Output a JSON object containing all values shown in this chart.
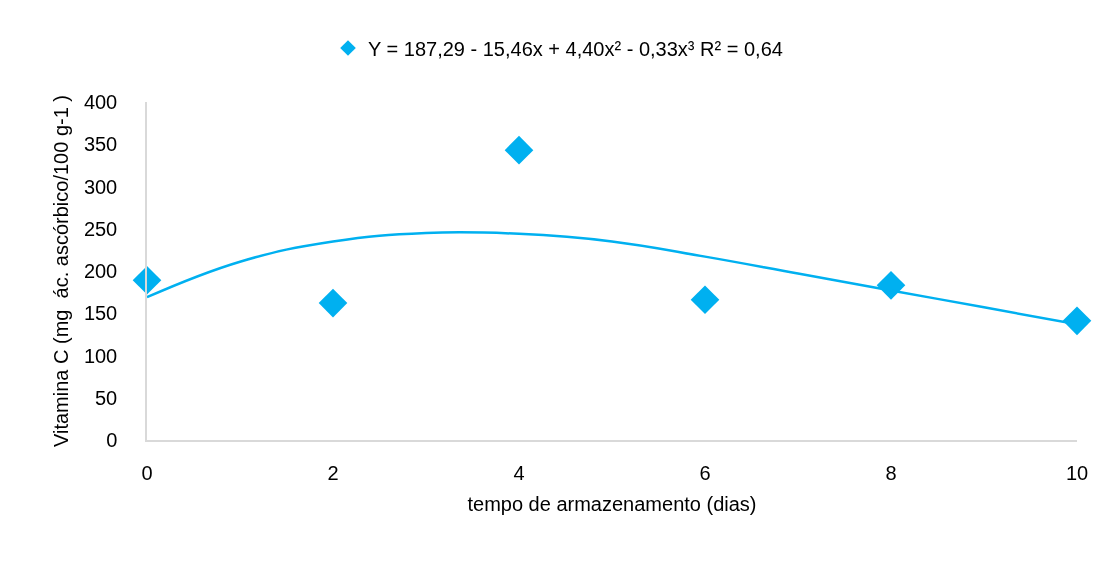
{
  "chart_data": {
    "type": "scatter",
    "xlabel": "tempo de armazenamento (dias)",
    "ylabel": "Vitamina C (mg  ác. ascórbico/100 g-1 )",
    "x": [
      0,
      2,
      4,
      6,
      8,
      10
    ],
    "series": [
      {
        "name": "Y = 187,29 - 15,46x + 4,40x² - 0,33x³ R² = 0,64",
        "color": "#00b0f0",
        "values": [
          189,
          162,
          343,
          166,
          183,
          141
        ],
        "marker": "diamond"
      },
      {
        "type": "line",
        "color": "#00b0f0",
        "x": [
          0,
          1,
          2,
          3,
          4,
          5,
          6,
          7,
          8,
          9,
          10
        ],
        "values": [
          169,
          211,
          235,
          245,
          244,
          235,
          217,
          197,
          177,
          157,
          137
        ],
        "marker": "none",
        "line_style": "solid"
      }
    ],
    "xlim": [
      0,
      10
    ],
    "xticks": [
      0,
      2,
      4,
      6,
      8,
      10
    ],
    "ylim": [
      0,
      400
    ],
    "yticks": [
      0,
      50,
      100,
      150,
      200,
      250,
      300,
      350,
      400
    ],
    "legend": "top"
  }
}
